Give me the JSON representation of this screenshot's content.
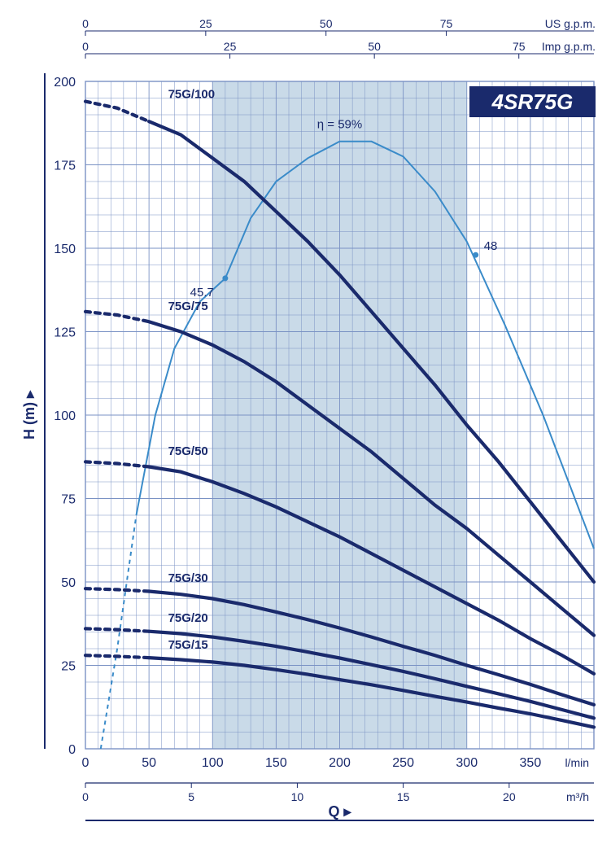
{
  "product_badge": "4SR75G",
  "badge_bg": "#1a2a6c",
  "badge_fg": "#ffffff",
  "axes": {
    "y": {
      "label": "H (m)",
      "label_fontsize": 18,
      "min": 0,
      "max": 200,
      "major_tick_step": 25,
      "ticks": [
        0,
        25,
        50,
        75,
        100,
        125,
        150,
        175,
        200
      ]
    },
    "x_primary": {
      "label": "Q",
      "label_fontsize": 18,
      "unit": "l/min",
      "min": 0,
      "max": 400,
      "major_tick_step": 50,
      "ticks": [
        0,
        50,
        100,
        150,
        200,
        250,
        300,
        350
      ]
    },
    "x_secondary_bottom": {
      "unit": "m³/h",
      "min": 0,
      "max": 24,
      "ticks": [
        0,
        5,
        10,
        15,
        20
      ]
    },
    "x_top_us": {
      "unit": "US g.p.m.",
      "ticks": [
        0,
        25,
        50,
        75
      ]
    },
    "x_top_imp": {
      "unit": "Imp g.p.m.",
      "ticks": [
        0,
        25,
        50,
        75
      ]
    }
  },
  "plot": {
    "background_color": "#ffffff",
    "operating_band_color": "#c9dae8",
    "operating_band_x_lmin": [
      100,
      300
    ],
    "grid_color": "#7a92c4",
    "grid_stroke": 0.6,
    "curve_color": "#1a2a6c",
    "curve_stroke_solid": 4.2,
    "curve_stroke_dash": 4.2,
    "dash_pattern": "6 6",
    "efficiency_color": "#3a8bc9",
    "efficiency_stroke": 2.0
  },
  "series": [
    {
      "label": "75G/100",
      "label_xy_lmin_m": [
        65,
        195
      ],
      "dashed_lmin_range": [
        0,
        50
      ],
      "points_lmin_m": [
        [
          0,
          194
        ],
        [
          25,
          192
        ],
        [
          50,
          188
        ],
        [
          75,
          184
        ],
        [
          100,
          177
        ],
        [
          125,
          170
        ],
        [
          150,
          161
        ],
        [
          175,
          152
        ],
        [
          200,
          142
        ],
        [
          225,
          131
        ],
        [
          250,
          120
        ],
        [
          275,
          109
        ],
        [
          300,
          97
        ],
        [
          325,
          86
        ],
        [
          350,
          74
        ],
        [
          375,
          62
        ],
        [
          400,
          50
        ]
      ]
    },
    {
      "label": "75G/75",
      "label_xy_lmin_m": [
        65,
        131.5
      ],
      "dashed_lmin_range": [
        0,
        50
      ],
      "points_lmin_m": [
        [
          0,
          131
        ],
        [
          25,
          130
        ],
        [
          50,
          128
        ],
        [
          75,
          125
        ],
        [
          100,
          121
        ],
        [
          125,
          116
        ],
        [
          150,
          110
        ],
        [
          175,
          103
        ],
        [
          200,
          96
        ],
        [
          225,
          89
        ],
        [
          250,
          81
        ],
        [
          275,
          73
        ],
        [
          300,
          66
        ],
        [
          325,
          58
        ],
        [
          350,
          50
        ],
        [
          375,
          42
        ],
        [
          400,
          34
        ]
      ]
    },
    {
      "label": "75G/50",
      "label_xy_lmin_m": [
        65,
        88
      ],
      "dashed_lmin_range": [
        0,
        50
      ],
      "points_lmin_m": [
        [
          0,
          86
        ],
        [
          25,
          85.5
        ],
        [
          50,
          84.5
        ],
        [
          75,
          83
        ],
        [
          100,
          80
        ],
        [
          125,
          76.5
        ],
        [
          150,
          72.5
        ],
        [
          175,
          68
        ],
        [
          200,
          63.5
        ],
        [
          225,
          58.5
        ],
        [
          250,
          53.5
        ],
        [
          275,
          48.5
        ],
        [
          300,
          43.5
        ],
        [
          325,
          38.5
        ],
        [
          350,
          33
        ],
        [
          375,
          28
        ],
        [
          400,
          22.5
        ]
      ]
    },
    {
      "label": "75G/30",
      "label_xy_lmin_m": [
        65,
        50
      ],
      "dashed_lmin_range": [
        0,
        50
      ],
      "points_lmin_m": [
        [
          0,
          48
        ],
        [
          25,
          47.7
        ],
        [
          50,
          47.2
        ],
        [
          75,
          46.3
        ],
        [
          100,
          45
        ],
        [
          125,
          43.2
        ],
        [
          150,
          41
        ],
        [
          175,
          38.7
        ],
        [
          200,
          36.2
        ],
        [
          225,
          33.5
        ],
        [
          250,
          30.7
        ],
        [
          275,
          28
        ],
        [
          300,
          25
        ],
        [
          325,
          22.2
        ],
        [
          350,
          19.3
        ],
        [
          375,
          16.2
        ],
        [
          400,
          13.2
        ]
      ]
    },
    {
      "label": "75G/20",
      "label_xy_lmin_m": [
        65,
        38
      ],
      "dashed_lmin_range": [
        0,
        50
      ],
      "points_lmin_m": [
        [
          0,
          36
        ],
        [
          25,
          35.7
        ],
        [
          50,
          35.2
        ],
        [
          75,
          34.5
        ],
        [
          100,
          33.5
        ],
        [
          125,
          32.2
        ],
        [
          150,
          30.7
        ],
        [
          175,
          29
        ],
        [
          200,
          27.2
        ],
        [
          225,
          25.2
        ],
        [
          250,
          23.2
        ],
        [
          275,
          21
        ],
        [
          300,
          18.7
        ],
        [
          325,
          16.5
        ],
        [
          350,
          14.2
        ],
        [
          375,
          11.7
        ],
        [
          400,
          9.2
        ]
      ]
    },
    {
      "label": "75G/15",
      "label_xy_lmin_m": [
        65,
        30
      ],
      "dashed_lmin_range": [
        0,
        50
      ],
      "points_lmin_m": [
        [
          0,
          28
        ],
        [
          25,
          27.7
        ],
        [
          50,
          27.3
        ],
        [
          75,
          26.7
        ],
        [
          100,
          26
        ],
        [
          125,
          25
        ],
        [
          150,
          23.7
        ],
        [
          175,
          22.3
        ],
        [
          200,
          20.7
        ],
        [
          225,
          19.2
        ],
        [
          250,
          17.5
        ],
        [
          275,
          15.7
        ],
        [
          300,
          14
        ],
        [
          325,
          12.2
        ],
        [
          350,
          10.5
        ],
        [
          375,
          8.5
        ],
        [
          400,
          6.5
        ]
      ]
    }
  ],
  "efficiency": {
    "label": "η = 59%",
    "label_xy_lmin_m": [
      200,
      186
    ],
    "markers": [
      {
        "label": "45.7",
        "x_lmin": 110,
        "y_m": 141
      },
      {
        "label": "48",
        "x_lmin": 307,
        "y_m": 148
      }
    ],
    "dashed_lmin_range": [
      0,
      40
    ],
    "points_lmin_m": [
      [
        12,
        0
      ],
      [
        25,
        30
      ],
      [
        40,
        70
      ],
      [
        55,
        100
      ],
      [
        70,
        120
      ],
      [
        90,
        134
      ],
      [
        110,
        141
      ],
      [
        130,
        159
      ],
      [
        150,
        170
      ],
      [
        175,
        177
      ],
      [
        200,
        182
      ],
      [
        225,
        182
      ],
      [
        250,
        177.5
      ],
      [
        275,
        167
      ],
      [
        300,
        152
      ],
      [
        330,
        127
      ],
      [
        360,
        100
      ],
      [
        385,
        75
      ],
      [
        400,
        60
      ]
    ]
  }
}
